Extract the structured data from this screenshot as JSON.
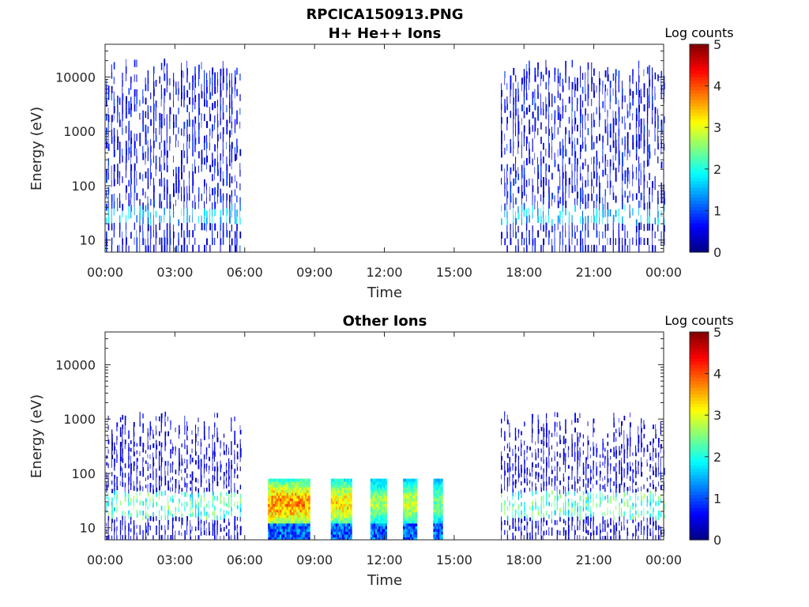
{
  "figure_title": "RPCICA150913.PNG",
  "colormap": [
    "#00007f",
    "#0000ff",
    "#007fff",
    "#00ffff",
    "#7fff7f",
    "#ffff00",
    "#ff7f00",
    "#ff0000",
    "#7f0000"
  ],
  "chart_data": [
    {
      "type": "heatmap",
      "title": "H+ He++ Ions",
      "xlabel": "Time",
      "ylabel": "Energy (eV)",
      "x_ticks": [
        "00:00",
        "03:00",
        "06:00",
        "09:00",
        "12:00",
        "15:00",
        "18:00",
        "21:00",
        "00:00"
      ],
      "x_range_hours": [
        0,
        24
      ],
      "y_scale": "log",
      "y_ticks": [
        "10",
        "100",
        "1000",
        "10000"
      ],
      "y_range_eV": [
        6,
        40000
      ],
      "colorbar": {
        "title": "Log counts",
        "ticks": [
          "0",
          "1",
          "2",
          "3",
          "4",
          "5"
        ],
        "range": [
          0,
          5
        ]
      },
      "data_intervals_hours": [
        [
          0.0,
          5.8
        ],
        [
          17.0,
          24.0
        ]
      ],
      "pattern": "thin vertical streaks, mostly 0-1 log counts across 6 eV to ~20000 eV, with some 1.5-2 at ~30 eV",
      "typical_log_counts": {
        "low_energy_band_eV": [
          20,
          40
        ],
        "low_energy_band_value": 1.8,
        "high_energy_value": 0.8
      }
    },
    {
      "type": "heatmap",
      "title": "Other Ions",
      "xlabel": "Time",
      "ylabel": "Energy (eV)",
      "x_ticks": [
        "00:00",
        "03:00",
        "06:00",
        "09:00",
        "12:00",
        "15:00",
        "18:00",
        "21:00",
        "00:00"
      ],
      "x_range_hours": [
        0,
        24
      ],
      "y_scale": "log",
      "y_ticks": [
        "10",
        "100",
        "1000",
        "10000"
      ],
      "y_range_eV": [
        6,
        40000
      ],
      "colorbar": {
        "title": "Log counts",
        "ticks": [
          "0",
          "1",
          "2",
          "3",
          "4",
          "5"
        ],
        "range": [
          0,
          5
        ]
      },
      "data_intervals_hours": [
        [
          0.0,
          5.8
        ],
        [
          17.0,
          24.0
        ]
      ],
      "blocks": [
        {
          "start_h": 7.0,
          "end_h": 8.8,
          "emax_eV": 80,
          "peak_log_counts": 3.8
        },
        {
          "start_h": 9.7,
          "end_h": 10.6,
          "emax_eV": 80,
          "peak_log_counts": 3.4
        },
        {
          "start_h": 11.4,
          "end_h": 12.1,
          "emax_eV": 80,
          "peak_log_counts": 2.8
        },
        {
          "start_h": 12.8,
          "end_h": 13.4,
          "emax_eV": 80,
          "peak_log_counts": 3.0
        },
        {
          "start_h": 14.1,
          "end_h": 14.5,
          "emax_eV": 80,
          "peak_log_counts": 2.6
        }
      ],
      "pattern": "vertical streaks below ~1500 eV with 2-3 log counts band between 15 and 45 eV",
      "typical_log_counts": {
        "low_energy_band_eV": [
          15,
          45
        ],
        "low_energy_band_value": 2.5,
        "high_energy_value": 0.6
      }
    }
  ]
}
